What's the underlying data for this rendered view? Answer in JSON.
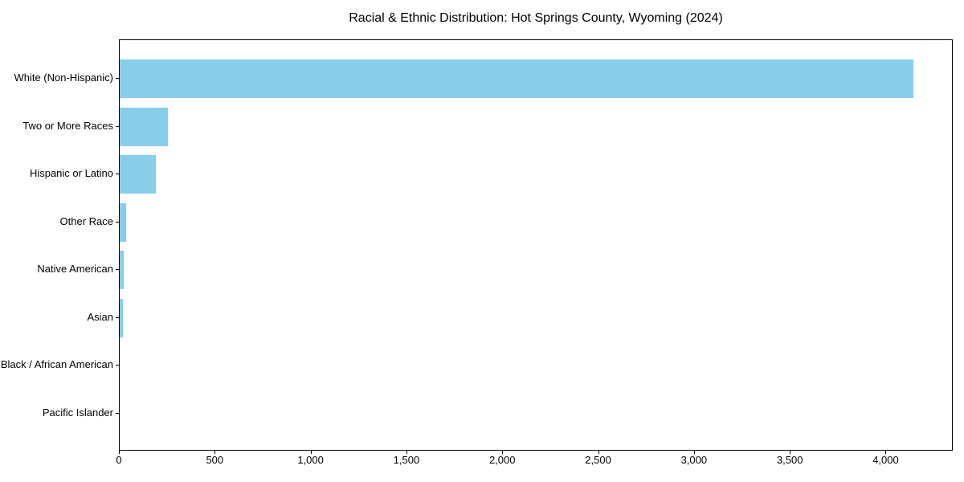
{
  "chart_data": {
    "type": "bar",
    "orientation": "horizontal",
    "title": "Racial & Ethnic Distribution: Hot Springs County, Wyoming (2024)",
    "categories": [
      "White (Non-Hispanic)",
      "Two or More Races",
      "Hispanic or Latino",
      "Other Race",
      "Native American",
      "Asian",
      "Black / African American",
      "Pacific Islander"
    ],
    "values": [
      4140,
      250,
      187,
      32,
      20,
      16,
      0,
      0
    ],
    "xlabel": "",
    "ylabel": "",
    "xlim": [
      0,
      4350
    ],
    "x_ticks": [
      0,
      500,
      1000,
      1500,
      2000,
      2500,
      3000,
      3500,
      4000
    ],
    "x_tick_labels": [
      "0",
      "500",
      "1,000",
      "1,500",
      "2,000",
      "2,500",
      "3,000",
      "3,500",
      "4,000"
    ],
    "bar_color": "#87CEEB",
    "grid": false,
    "legend_position": "none"
  },
  "colors": {
    "bar": "#87CEEB",
    "axis": "#000000",
    "text": "#000000",
    "background": "#ffffff"
  }
}
